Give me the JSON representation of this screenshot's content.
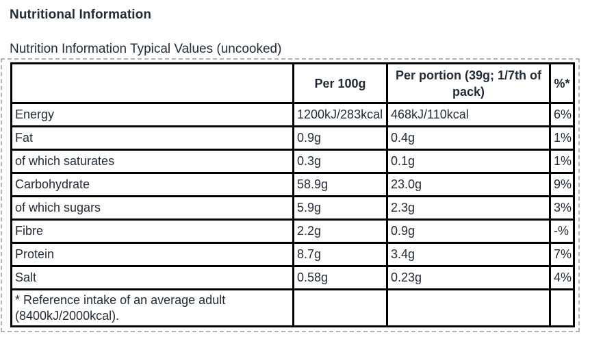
{
  "page": {
    "title": "Nutritional Information",
    "subtitle": "Nutrition Information Typical Values (uncooked)"
  },
  "table": {
    "columns": [
      "",
      "Per 100g",
      "Per portion (39g; 1/7th of pack)",
      "%*"
    ],
    "rows": [
      {
        "label": "Energy",
        "per100g": "1200kJ/283kcal",
        "per_portion": "468kJ/110kcal",
        "percent": "6%"
      },
      {
        "label": "Fat",
        "per100g": "0.9g",
        "per_portion": "0.4g",
        "percent": "1%"
      },
      {
        "label": "of which saturates",
        "per100g": "0.3g",
        "per_portion": "0.1g",
        "percent": "1%"
      },
      {
        "label": "Carbohydrate",
        "per100g": "58.9g",
        "per_portion": "23.0g",
        "percent": "9%"
      },
      {
        "label": "of which sugars",
        "per100g": "5.9g",
        "per_portion": "2.3g",
        "percent": "3%"
      },
      {
        "label": "Fibre",
        "per100g": "2.2g",
        "per_portion": "0.9g",
        "percent": "-%"
      },
      {
        "label": "Protein",
        "per100g": "8.7g",
        "per_portion": "3.4g",
        "percent": "7%"
      },
      {
        "label": "Salt",
        "per100g": "0.58g",
        "per_portion": "0.23g",
        "percent": "4%"
      }
    ],
    "footnote": "* Reference intake of an average adult (8400kJ/2000kcal)."
  },
  "colors": {
    "text": "#222b38",
    "table_border": "#000000",
    "dashed_border": "#b3b3b3",
    "background": "#ffffff"
  }
}
